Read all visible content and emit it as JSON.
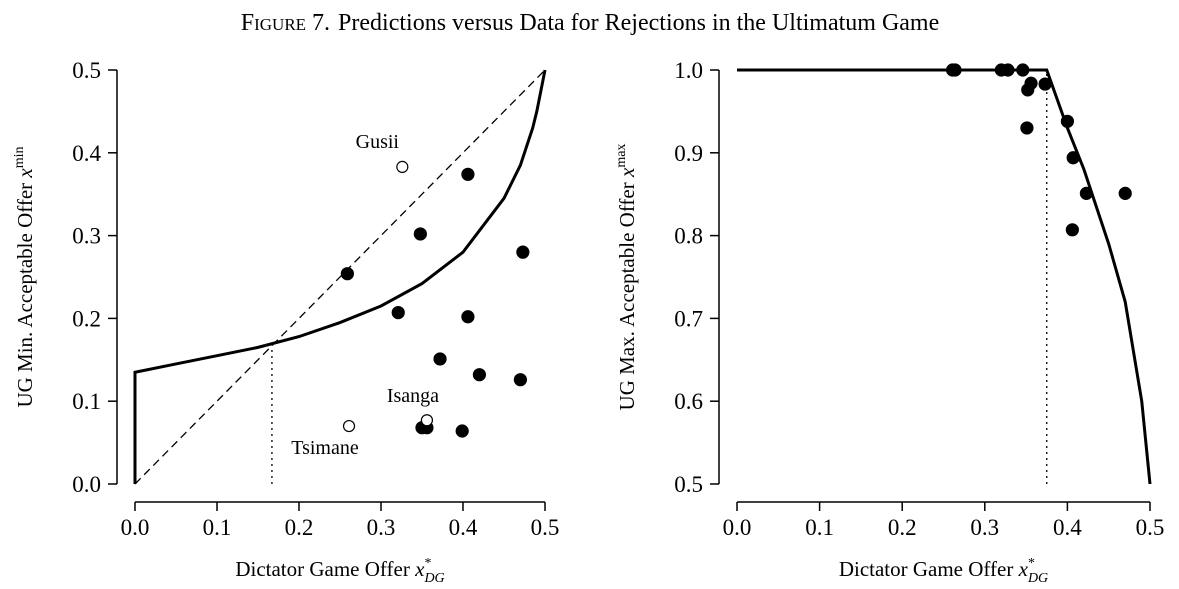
{
  "figure_label": "Figure 7.",
  "figure_title": "Predictions versus Data for Rejections in the Ultimatum Game",
  "chart_data": [
    {
      "type": "scatter",
      "xlabel": "Dictator Game Offer ",
      "xlabel_var": "x",
      "xlabel_sup": "*",
      "xlabel_sub": "DG",
      "ylabel": "UG Min. Acceptable Offer ",
      "ylabel_var": "x",
      "ylabel_sup": "min",
      "xlim": [
        0,
        0.5
      ],
      "xticks": [
        {
          "value": 0,
          "label": "0.0"
        },
        0.1,
        0.2,
        0.3,
        0.4,
        0.5
      ],
      "ylim": [
        0,
        0.5
      ],
      "yticks": [
        {
          "value": 0,
          "label": "0.0"
        },
        0.1,
        0.2,
        0.3,
        0.4,
        0.5
      ],
      "series": [
        {
          "style": "filled",
          "color": "#000000",
          "x": [
            0.259,
            0.348,
            0.406,
            0.473,
            0.321,
            0.406,
            0.372,
            0.42,
            0.47,
            0.35,
            0.356,
            0.399
          ],
          "values": [
            0.254,
            0.302,
            0.374,
            0.28,
            0.207,
            0.202,
            0.151,
            0.132,
            0.126,
            0.068,
            0.068,
            0.064
          ]
        },
        {
          "style": "open",
          "color": "#000000",
          "labels": [
            "Gusii",
            "Isanga",
            "Tsimane"
          ],
          "x": [
            0.326,
            0.356,
            0.261
          ],
          "values": [
            0.383,
            0.077,
            0.07
          ]
        },
        {
          "style": "solid",
          "color": "#000000",
          "x": [
            0,
            0,
            0.05,
            0.1,
            0.15,
            0.2,
            0.25,
            0.3,
            0.35,
            0.4,
            0.45,
            0.47,
            0.485,
            0.49,
            0.5
          ],
          "values": [
            0,
            0.135,
            0.145,
            0.155,
            0.165,
            0.178,
            0.195,
            0.215,
            0.242,
            0.28,
            0.345,
            0.385,
            0.43,
            0.45,
            0.5
          ]
        },
        {
          "style": "dashed",
          "color": "#000000",
          "x": [
            0,
            0.5
          ],
          "values": [
            0,
            0.5
          ]
        },
        {
          "style": "dotted",
          "color": "#000000",
          "x": [
            0.167,
            0.167
          ],
          "values": [
            0,
            0.167
          ]
        }
      ]
    },
    {
      "type": "scatter",
      "xlabel": "Dictator Game Offer ",
      "xlabel_var": "x",
      "xlabel_sup": "*",
      "xlabel_sub": "DG",
      "ylabel": "UG Max. Acceptable Offer ",
      "ylabel_var": "x",
      "ylabel_sup": "max",
      "xlim": [
        0,
        0.5
      ],
      "xticks": [
        {
          "value": 0,
          "label": "0.0"
        },
        0.1,
        0.2,
        0.3,
        0.4,
        0.5
      ],
      "ylim": [
        0.5,
        1
      ],
      "yticks": [
        0.5,
        0.6,
        0.7,
        0.8,
        0.9,
        {
          "value": 1,
          "label": "1.0"
        }
      ],
      "series": [
        {
          "style": "filled",
          "color": "#000000",
          "x": [
            0.261,
            0.264,
            0.32,
            0.328,
            0.346,
            0.356,
            0.352,
            0.373,
            0.351,
            0.4,
            0.407,
            0.423,
            0.406,
            0.47
          ],
          "values": [
            1,
            1,
            1,
            1,
            1,
            0.984,
            0.976,
            0.983,
            0.93,
            0.938,
            0.894,
            0.851,
            0.807,
            0.851
          ]
        },
        {
          "style": "solid",
          "color": "#000000",
          "x": [
            0,
            0.375,
            0.4,
            0.42,
            0.45,
            0.47,
            0.49,
            0.5
          ],
          "values": [
            1,
            1,
            0.93,
            0.88,
            0.79,
            0.72,
            0.6,
            0.5
          ]
        },
        {
          "style": "dotted",
          "color": "#000000",
          "x": [
            0.375,
            0.375
          ],
          "values": [
            0.5,
            1
          ]
        }
      ]
    }
  ]
}
